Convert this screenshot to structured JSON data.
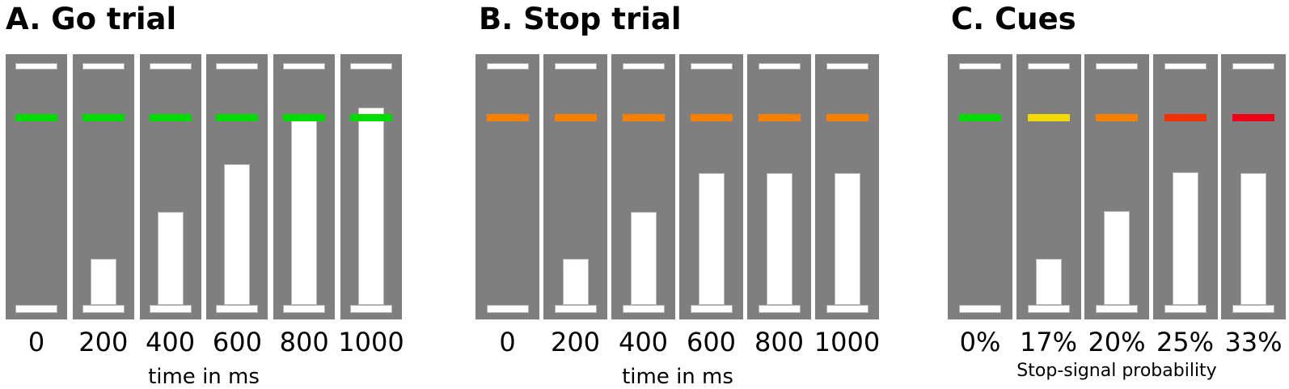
{
  "figure": {
    "background_color": "#ffffff",
    "column_color": "#7f7f7f",
    "marker_color": "#ffffff",
    "panels": [
      {
        "id": "A",
        "title": "A. Go trial",
        "axis_label": "time in ms",
        "cue_color": "#00dc00",
        "columns": [
          {
            "label": "0",
            "cue_color": "#00dc00",
            "fill_height": 0
          },
          {
            "label": "200",
            "cue_color": "#00dc00",
            "fill_height": 57
          },
          {
            "label": "400",
            "cue_color": "#00dc00",
            "fill_height": 115
          },
          {
            "label": "600",
            "cue_color": "#00dc00",
            "fill_height": 174
          },
          {
            "label": "800",
            "cue_color": "#00dc00",
            "fill_height": 229
          },
          {
            "label": "1000",
            "cue_color": "#00dc00",
            "fill_height": 244
          }
        ]
      },
      {
        "id": "B",
        "title": "B. Stop trial",
        "axis_label": "time in ms",
        "cue_color": "#f88000",
        "columns": [
          {
            "label": "0",
            "cue_color": "#f88000",
            "fill_height": 0
          },
          {
            "label": "200",
            "cue_color": "#f88000",
            "fill_height": 57
          },
          {
            "label": "400",
            "cue_color": "#f88000",
            "fill_height": 115
          },
          {
            "label": "600",
            "cue_color": "#f88000",
            "fill_height": 163
          },
          {
            "label": "800",
            "cue_color": "#f88000",
            "fill_height": 163
          },
          {
            "label": "1000",
            "cue_color": "#f88000",
            "fill_height": 163
          }
        ]
      },
      {
        "id": "C",
        "title": "C. Cues",
        "axis_label": "Stop-signal probability",
        "cue_color": null,
        "columns": [
          {
            "label": "0%",
            "cue_color": "#00dc00",
            "fill_height": 0
          },
          {
            "label": "17%",
            "cue_color": "#f2dc00",
            "fill_height": 57
          },
          {
            "label": "20%",
            "cue_color": "#f88000",
            "fill_height": 116
          },
          {
            "label": "25%",
            "cue_color": "#f23000",
            "fill_height": 164
          },
          {
            "label": "33%",
            "cue_color": "#ee0018",
            "fill_height": 163
          }
        ]
      }
    ]
  }
}
